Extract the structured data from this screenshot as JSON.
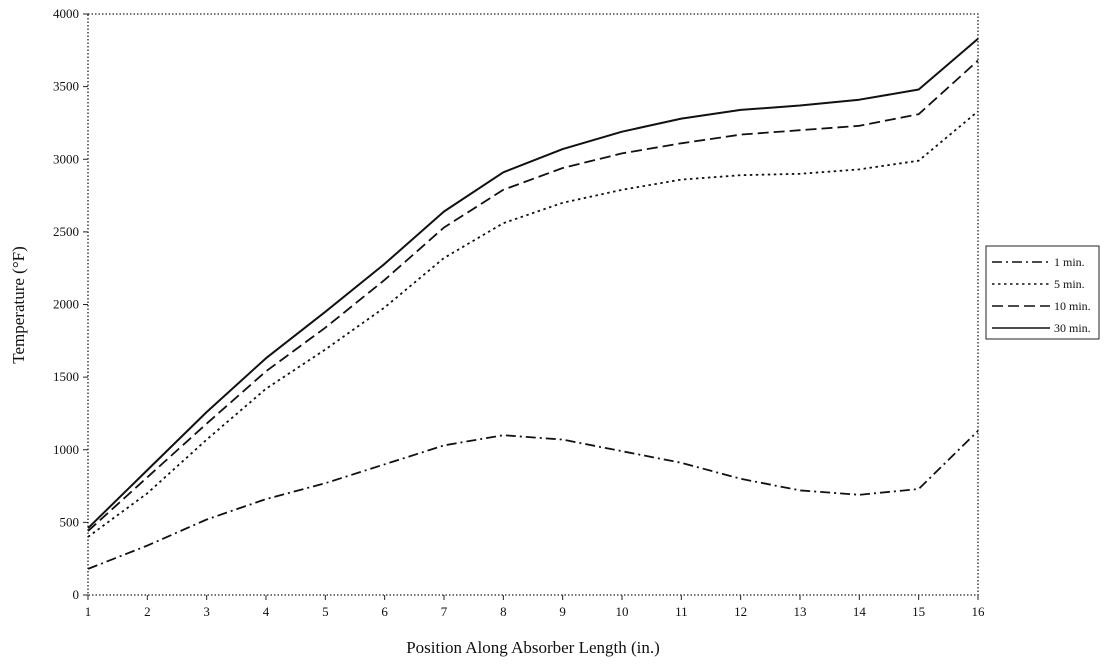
{
  "chart_data": {
    "type": "line",
    "title": "",
    "xlabel": "Position Along Absorber Length (in.)",
    "ylabel": "Temperature (°F)",
    "x": [
      1,
      2,
      3,
      4,
      5,
      6,
      7,
      8,
      9,
      10,
      11,
      12,
      13,
      14,
      15,
      16
    ],
    "xlim": [
      1,
      16
    ],
    "ylim": [
      0,
      4000
    ],
    "yticks": [
      0,
      500,
      1000,
      1500,
      2000,
      2500,
      3000,
      3500,
      4000
    ],
    "grid": false,
    "legend_position": "right",
    "series": [
      {
        "name": "1 min.",
        "dash": "dash-dot",
        "values": [
          180,
          340,
          520,
          660,
          770,
          900,
          1030,
          1100,
          1070,
          990,
          910,
          800,
          720,
          690,
          730,
          1130
        ]
      },
      {
        "name": "5 min.",
        "dash": "dotted",
        "values": [
          400,
          700,
          1070,
          1420,
          1690,
          1980,
          2320,
          2560,
          2700,
          2790,
          2860,
          2890,
          2900,
          2930,
          2990,
          3330
        ]
      },
      {
        "name": "10 min.",
        "dash": "dashed",
        "values": [
          440,
          810,
          1180,
          1540,
          1840,
          2170,
          2530,
          2790,
          2940,
          3040,
          3110,
          3170,
          3200,
          3230,
          3310,
          3680
        ]
      },
      {
        "name": "30 min.",
        "dash": "solid",
        "values": [
          460,
          860,
          1260,
          1630,
          1950,
          2280,
          2640,
          2910,
          3070,
          3190,
          3280,
          3340,
          3370,
          3410,
          3480,
          3830
        ]
      }
    ]
  }
}
